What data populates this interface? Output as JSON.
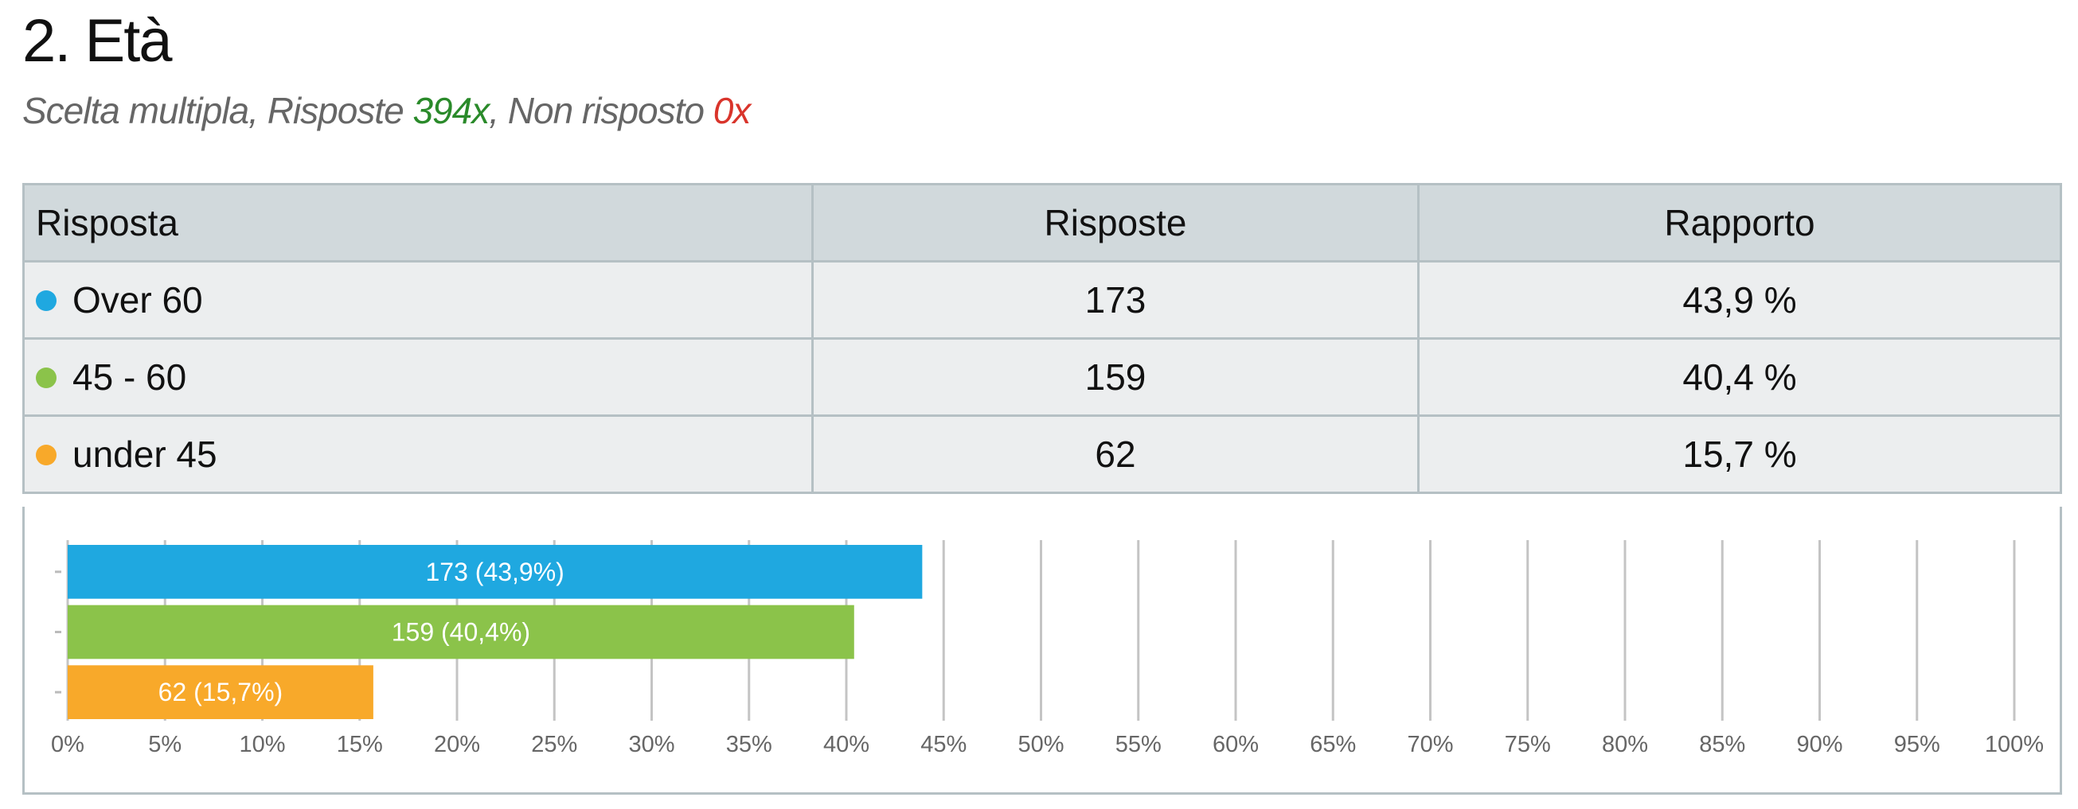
{
  "header": {
    "title": "2. Età",
    "subtitle": [
      "Scelta multipla, Risposte ",
      "394x",
      ", Non risposto ",
      "0x"
    ]
  },
  "table": {
    "columns": [
      "Risposta",
      "Risposte",
      "Rapporto"
    ],
    "rows": [
      [
        "Over 60",
        "173",
        "43,9 %"
      ],
      [
        "45 - 60",
        "159",
        "40,4 %"
      ],
      [
        "under 45",
        "62",
        "15,7 %"
      ]
    ]
  },
  "chart_data": {
    "type": "bar",
    "orientation": "horizontal",
    "categories": [
      null,
      null,
      null
    ],
    "values": [
      43.9,
      40.4,
      15.7
    ],
    "value_labels": [
      "173 (43,9%)",
      "159 (40,4%)",
      "62 (15,7%)"
    ],
    "colors": [
      "#1fa8e0",
      "#8bc34a",
      "#f8a92a"
    ],
    "xlim": [
      0,
      100
    ],
    "xticks": [
      {
        "value": 0,
        "label": "0%"
      },
      {
        "value": 5,
        "label": "5%"
      },
      {
        "value": 10,
        "label": "10%"
      },
      {
        "value": 15,
        "label": "15%"
      },
      {
        "value": 20,
        "label": "20%"
      },
      {
        "value": 25,
        "label": "25%"
      },
      {
        "value": 30,
        "label": "30%"
      },
      {
        "value": 35,
        "label": "35%"
      },
      {
        "value": 40,
        "label": "40%"
      },
      {
        "value": 45,
        "label": "45%"
      },
      {
        "value": 50,
        "label": "50%"
      },
      {
        "value": 55,
        "label": "55%"
      },
      {
        "value": 60,
        "label": "60%"
      },
      {
        "value": 65,
        "label": "65%"
      },
      {
        "value": 70,
        "label": "70%"
      },
      {
        "value": 75,
        "label": "75%"
      },
      {
        "value": 80,
        "label": "80%"
      },
      {
        "value": 85,
        "label": "85%"
      },
      {
        "value": 90,
        "label": "90%"
      },
      {
        "value": 95,
        "label": "95%"
      },
      {
        "value": 100,
        "label": "100%"
      }
    ],
    "grid": true
  }
}
